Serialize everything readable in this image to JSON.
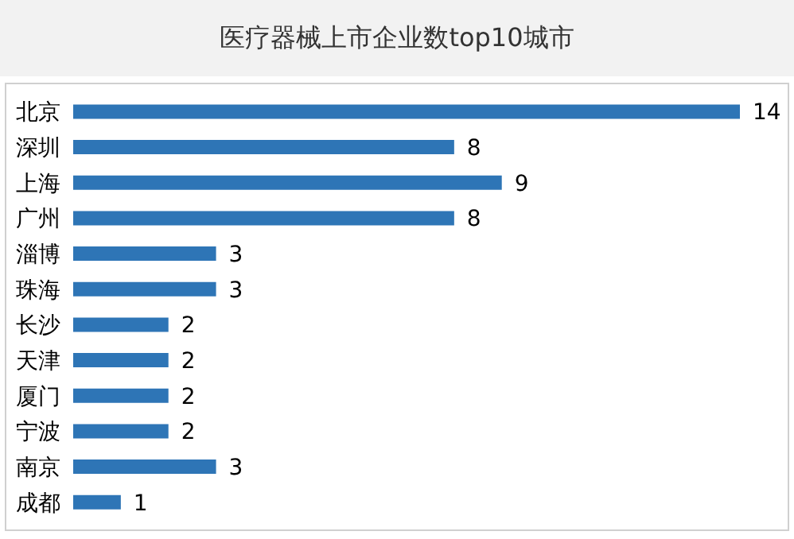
{
  "chart_data": {
    "type": "bar",
    "orientation": "horizontal",
    "title": "医疗器械上市企业数top10城市",
    "categories": [
      "北京",
      "深圳",
      "上海",
      "广州",
      "淄博",
      "珠海",
      "长沙",
      "天津",
      "厦门",
      "宁波",
      "南京",
      "成都"
    ],
    "values": [
      14,
      8,
      9,
      8,
      3,
      3,
      2,
      2,
      2,
      2,
      3,
      1
    ],
    "color": "#2e75b6",
    "data_labels": true
  }
}
